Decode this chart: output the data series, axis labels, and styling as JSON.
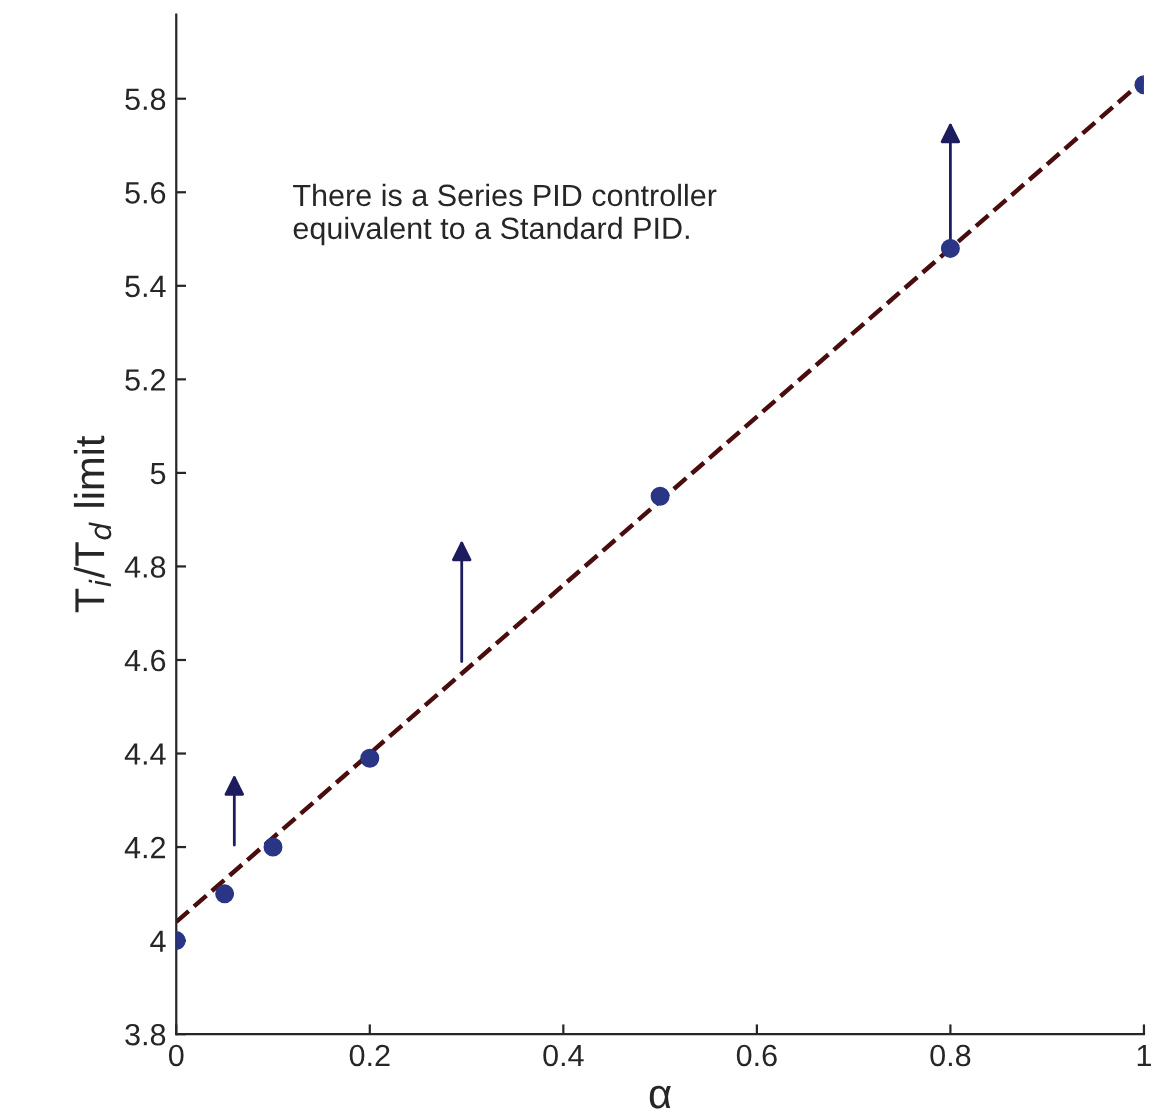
{
  "chart_data": {
    "type": "scatter",
    "xlabel": "α",
    "ylabel": "T$_{i}$/T$_{d}$ limit",
    "xlim": [
      0,
      1
    ],
    "ylim": [
      3.8,
      5.98
    ],
    "xticks": [
      0,
      0.2,
      0.4,
      0.6,
      0.8,
      1
    ],
    "yticks": [
      3.8,
      4,
      4.2,
      4.4,
      4.6,
      4.8,
      5,
      5.2,
      5.4,
      5.6,
      5.8
    ],
    "series": [
      {
        "color": "#2a3585",
        "marker": "circle",
        "x": [
          0,
          0.05,
          0.1,
          0.2,
          0.5,
          0.8,
          1
        ],
        "values": [
          4.0,
          4.1,
          4.2,
          4.39,
          4.95,
          5.48,
          5.83
        ]
      },
      {
        "type": "line",
        "color": "#4a0d0d",
        "line_style": "dashed",
        "marker": "none",
        "x": [
          0,
          1
        ],
        "values": [
          4.04,
          5.84
        ]
      }
    ],
    "annotations": [
      "There is a Series PID controller\nequivalent to a Standard PID."
    ],
    "grid": false
  }
}
